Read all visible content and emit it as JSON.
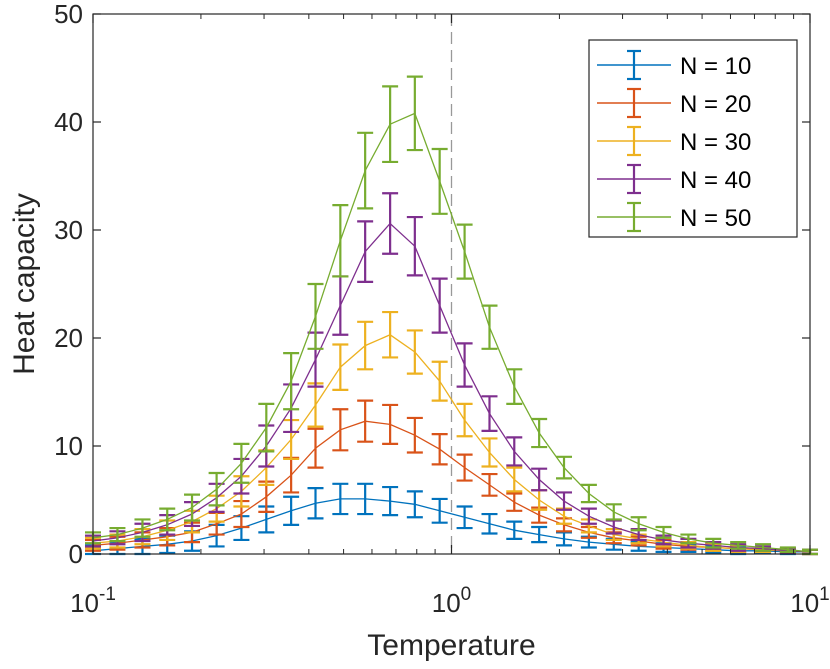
{
  "chart_data": {
    "type": "line",
    "title": "",
    "xlabel": "Temperature",
    "ylabel": "Heat capacity",
    "xscale": "log",
    "xlim": [
      0.1,
      10
    ],
    "ylim": [
      0,
      50
    ],
    "yticks": [
      0,
      10,
      20,
      30,
      40,
      50
    ],
    "xticks": [
      {
        "value": 0.1,
        "base": "10",
        "exp": "-1"
      },
      {
        "value": 1,
        "base": "10",
        "exp": "0"
      },
      {
        "value": 10,
        "base": "10",
        "exp": "1"
      }
    ],
    "reference_line": {
      "x": 1,
      "style": "dashed",
      "color": "#999999"
    },
    "legend_position": "top-right",
    "grid": false,
    "x": [
      0.1,
      0.117,
      0.1374,
      0.1611,
      0.1889,
      0.2212,
      0.2594,
      0.3044,
      0.357,
      0.4175,
      0.4897,
      0.5743,
      0.6742,
      0.7902,
      0.9268,
      1.0877,
      1.2764,
      1.4966,
      1.7559,
      2.0598,
      2.4167,
      2.8355,
      3.327,
      3.9033,
      4.5794,
      5.3727,
      6.3035,
      7.3957,
      8.6771,
      10.0
    ],
    "series": [
      {
        "name": "N = 10",
        "color": "#0072BD",
        "values": [
          0.3,
          0.5,
          0.7,
          0.9,
          1.2,
          1.7,
          2.4,
          3.2,
          4.0,
          4.7,
          5.1,
          5.1,
          4.9,
          4.6,
          4.0,
          3.4,
          2.8,
          2.2,
          1.8,
          1.4,
          1.1,
          0.9,
          0.7,
          0.6,
          0.5,
          0.4,
          0.3,
          0.3,
          0.2,
          0.2
        ],
        "errors": [
          0.5,
          0.6,
          0.7,
          0.8,
          0.9,
          1.0,
          1.1,
          1.2,
          1.3,
          1.4,
          1.4,
          1.4,
          1.3,
          1.2,
          1.1,
          1.0,
          0.9,
          0.8,
          0.7,
          0.6,
          0.5,
          0.5,
          0.4,
          0.4,
          0.3,
          0.3,
          0.3,
          0.2,
          0.2,
          0.2
        ]
      },
      {
        "name": "N = 20",
        "color": "#D95319",
        "values": [
          0.8,
          1.0,
          1.3,
          1.6,
          2.0,
          2.8,
          3.7,
          5.3,
          7.3,
          9.8,
          11.5,
          12.3,
          12.0,
          11.0,
          9.7,
          8.0,
          6.4,
          4.8,
          3.6,
          2.7,
          2.0,
          1.5,
          1.2,
          0.9,
          0.7,
          0.6,
          0.5,
          0.4,
          0.3,
          0.2
        ],
        "errors": [
          0.5,
          0.6,
          0.7,
          0.8,
          0.9,
          1.0,
          1.2,
          1.4,
          1.6,
          1.8,
          1.9,
          1.9,
          1.8,
          1.6,
          1.4,
          1.2,
          1.0,
          0.8,
          0.7,
          0.6,
          0.5,
          0.5,
          0.4,
          0.4,
          0.3,
          0.3,
          0.3,
          0.2,
          0.2,
          0.2
        ]
      },
      {
        "name": "N = 30",
        "color": "#EDB120",
        "values": [
          1.0,
          1.2,
          1.6,
          2.2,
          3.0,
          4.2,
          5.8,
          8.0,
          10.6,
          13.8,
          17.3,
          19.3,
          20.3,
          18.7,
          16.0,
          12.4,
          9.4,
          6.9,
          5.0,
          3.5,
          2.6,
          1.8,
          1.4,
          1.1,
          0.8,
          0.6,
          0.5,
          0.4,
          0.3,
          0.2
        ],
        "errors": [
          0.5,
          0.6,
          0.7,
          0.9,
          1.0,
          1.2,
          1.4,
          1.6,
          1.8,
          2.0,
          2.1,
          2.2,
          2.1,
          2.0,
          1.8,
          1.5,
          1.3,
          1.1,
          0.9,
          0.7,
          0.6,
          0.5,
          0.4,
          0.4,
          0.3,
          0.3,
          0.3,
          0.2,
          0.2,
          0.2
        ]
      },
      {
        "name": "N = 40",
        "color": "#7E2F8E",
        "values": [
          1.2,
          1.5,
          2.0,
          2.7,
          3.7,
          5.2,
          7.2,
          10.0,
          13.5,
          18.0,
          23.0,
          28.0,
          30.6,
          28.5,
          23.0,
          17.5,
          13.0,
          9.5,
          6.9,
          4.9,
          3.5,
          2.5,
          1.8,
          1.3,
          1.0,
          0.8,
          0.6,
          0.5,
          0.3,
          0.2
        ],
        "errors": [
          0.5,
          0.6,
          0.8,
          0.9,
          1.1,
          1.3,
          1.6,
          1.9,
          2.2,
          2.5,
          2.7,
          2.8,
          2.8,
          2.7,
          2.5,
          2.0,
          1.6,
          1.3,
          1.0,
          0.8,
          0.7,
          0.6,
          0.5,
          0.4,
          0.4,
          0.3,
          0.3,
          0.2,
          0.2,
          0.2
        ]
      },
      {
        "name": "N = 50",
        "color": "#77AC30",
        "values": [
          1.5,
          1.8,
          2.4,
          3.2,
          4.3,
          6.0,
          8.4,
          11.7,
          16.0,
          22.0,
          29.0,
          35.5,
          39.8,
          40.8,
          34.5,
          28.0,
          21.0,
          15.5,
          11.2,
          8.0,
          5.6,
          3.9,
          2.8,
          2.0,
          1.4,
          1.0,
          0.8,
          0.6,
          0.4,
          0.2
        ],
        "errors": [
          0.5,
          0.6,
          0.8,
          1.0,
          1.2,
          1.5,
          1.8,
          2.2,
          2.6,
          3.0,
          3.3,
          3.5,
          3.5,
          3.4,
          3.0,
          2.5,
          2.0,
          1.6,
          1.3,
          1.0,
          0.8,
          0.7,
          0.6,
          0.5,
          0.4,
          0.4,
          0.3,
          0.3,
          0.2,
          0.2
        ]
      }
    ]
  }
}
